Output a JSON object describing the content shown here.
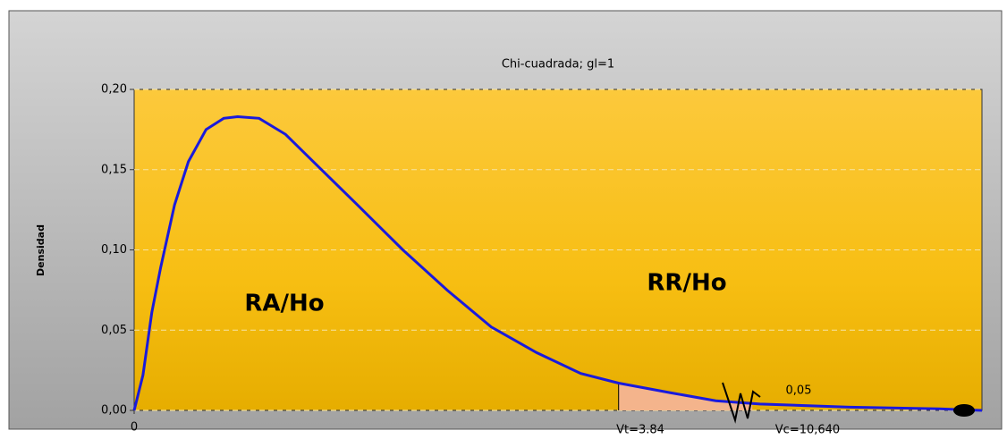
{
  "chart_data": {
    "type": "line",
    "title": "Chi-cuadrada; gl=1",
    "y_label": "Densidad",
    "x": [
      0,
      0.035,
      0.07,
      0.14,
      0.21,
      0.32,
      0.43,
      0.57,
      0.71,
      0.82,
      0.99,
      1.2,
      1.42,
      1.77,
      2.13,
      2.48,
      2.83,
      3.19,
      3.54,
      3.84,
      4.25,
      4.61,
      4.96,
      5.67,
      6.38,
      6.72
    ],
    "values": [
      0,
      0.011,
      0.022,
      0.061,
      0.089,
      0.128,
      0.155,
      0.175,
      0.182,
      0.183,
      0.182,
      0.172,
      0.155,
      0.128,
      0.1,
      0.075,
      0.052,
      0.036,
      0.023,
      0.017,
      0.011,
      0.006,
      0.004,
      0.002,
      0.001,
      0
    ],
    "color": "#1a1adc",
    "xlim": [
      0,
      6.72
    ],
    "xticks": [
      0
    ],
    "ylim": [
      0,
      0.2
    ],
    "yticks": [
      {
        "value": 0,
        "label": "0,00"
      },
      {
        "value": 0.05,
        "label": "0,05"
      },
      {
        "value": 0.1,
        "label": "0,10"
      },
      {
        "value": 0.15,
        "label": "0,15"
      },
      {
        "value": 0.2,
        "label": "0,20"
      }
    ],
    "grid": true,
    "critical_region": {
      "from": 3.84,
      "to": 4.9,
      "color": "#f4b48c"
    },
    "annotations": {
      "acceptance": "RA/Ho",
      "rejection": "RR/Ho",
      "alpha": "0,05",
      "vt": "Vt=3.84",
      "vc": "Vc=10,640"
    }
  }
}
